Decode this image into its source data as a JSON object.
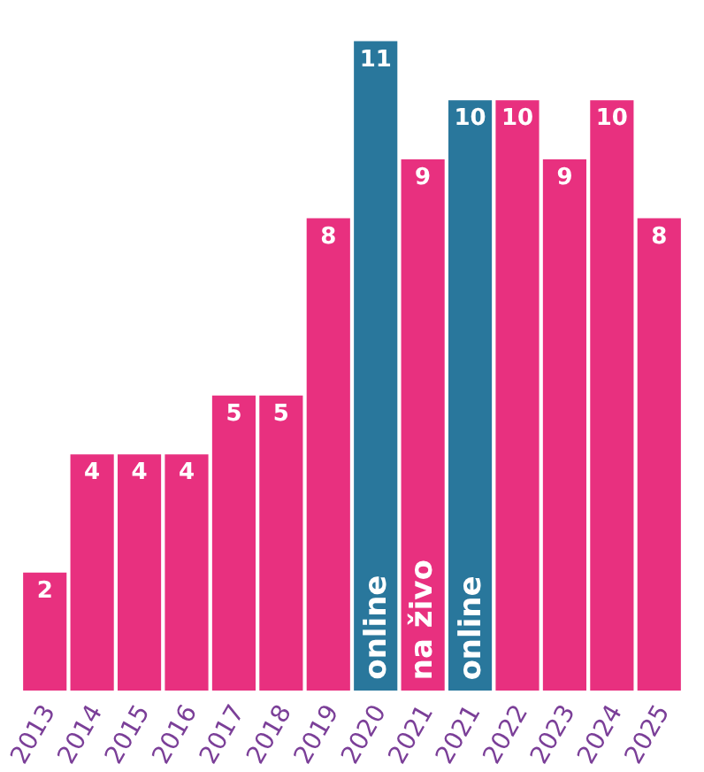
{
  "chart_data": {
    "type": "bar",
    "categories": [
      "2013",
      "2014",
      "2015",
      "2016",
      "2017",
      "2018",
      "2019",
      "2020",
      "2021",
      "2021",
      "2022",
      "2023",
      "2024",
      "2025"
    ],
    "values": [
      2,
      4,
      4,
      4,
      5,
      5,
      8,
      11,
      9,
      10,
      10,
      9,
      10,
      8
    ],
    "colors": [
      "#e8307f",
      "#e8307f",
      "#e8307f",
      "#e8307f",
      "#e8307f",
      "#e8307f",
      "#e8307f",
      "#29779c",
      "#e8307f",
      "#29779c",
      "#e8307f",
      "#e8307f",
      "#e8307f",
      "#e8307f"
    ],
    "data_labels": true,
    "annotations": [
      {
        "text": "online",
        "x": "2020",
        "y": 0
      },
      {
        "text": "na živo",
        "x": "2021",
        "y": 0
      },
      {
        "text": "online",
        "x": "2021",
        "y": 0
      }
    ]
  }
}
